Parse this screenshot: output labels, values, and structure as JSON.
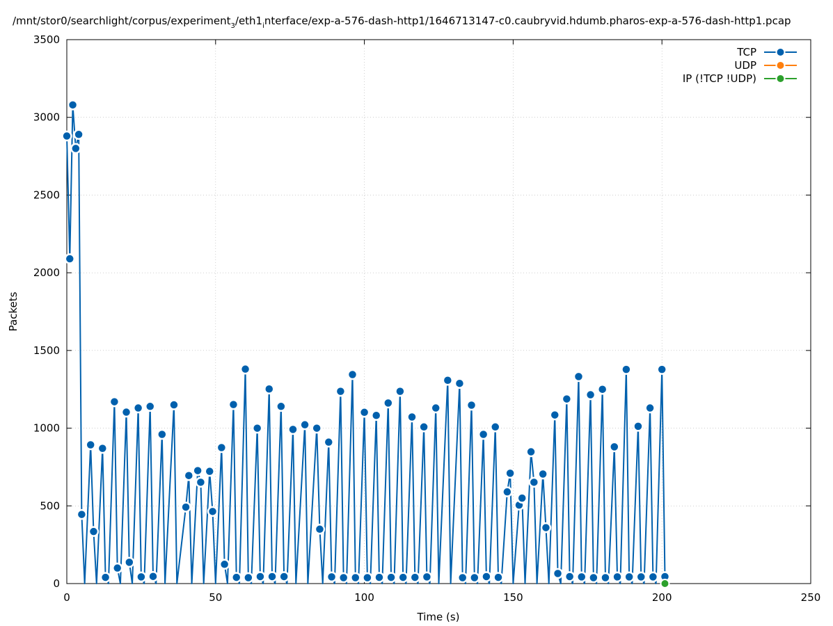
{
  "chart_data": {
    "type": "line",
    "title_prefix": "/mnt/stor0/searchlight/corpus/experiment",
    "title_sub1": "3",
    "title_mid": "/eth1",
    "title_sub2": "i",
    "title_suffix": "nterface/exp-a-576-dash-http1/1646713147-c0.caubryvid.hdumb.pharos-exp-a-576-dash-http1.pcap",
    "xlabel": "Time (s)",
    "ylabel": "Packets",
    "xlim": [
      0,
      250
    ],
    "ylim": [
      0,
      3500
    ],
    "xticks": [
      "0",
      "50",
      "100",
      "150",
      "200",
      "250"
    ],
    "yticks": [
      "0",
      "500",
      "1000",
      "1500",
      "2000",
      "2500",
      "3000",
      "3500"
    ],
    "grid": true,
    "legend_position": "top-right",
    "series": [
      {
        "name": "TCP",
        "color": "#0060ad",
        "points": [
          [
            0,
            2880
          ],
          [
            1,
            2090
          ],
          [
            2,
            3080
          ],
          [
            3,
            2800
          ],
          [
            4,
            2890
          ],
          [
            5,
            445
          ],
          [
            6,
            0
          ],
          [
            8,
            893
          ],
          [
            9,
            335
          ],
          [
            10,
            0
          ],
          [
            12,
            870
          ],
          [
            13,
            40
          ],
          [
            14,
            0
          ],
          [
            16,
            1170
          ],
          [
            17,
            100
          ],
          [
            18,
            0
          ],
          [
            20,
            1103
          ],
          [
            21,
            137
          ],
          [
            22,
            0
          ],
          [
            24,
            1130
          ],
          [
            25,
            43
          ],
          [
            26,
            0
          ],
          [
            28,
            1140
          ],
          [
            29,
            46
          ],
          [
            30,
            0
          ],
          [
            32,
            960
          ],
          [
            33,
            0
          ],
          [
            36,
            1150
          ],
          [
            37,
            0
          ],
          [
            40,
            492
          ],
          [
            41,
            695
          ],
          [
            42,
            0
          ],
          [
            44,
            727
          ],
          [
            45,
            652
          ],
          [
            46,
            0
          ],
          [
            48,
            722
          ],
          [
            49,
            464
          ],
          [
            50,
            0
          ],
          [
            52,
            875
          ],
          [
            53,
            124
          ],
          [
            54,
            0
          ],
          [
            56,
            1152
          ],
          [
            57,
            40
          ],
          [
            58,
            0
          ],
          [
            60,
            1380
          ],
          [
            61,
            38
          ],
          [
            62,
            0
          ],
          [
            64,
            1000
          ],
          [
            65,
            45
          ],
          [
            66,
            0
          ],
          [
            68,
            1252
          ],
          [
            69,
            45
          ],
          [
            70,
            0
          ],
          [
            72,
            1140
          ],
          [
            73,
            45
          ],
          [
            74,
            0
          ],
          [
            76,
            992
          ],
          [
            77,
            0
          ],
          [
            80,
            1022
          ],
          [
            81,
            0
          ],
          [
            84,
            1000
          ],
          [
            85,
            350
          ],
          [
            86,
            0
          ],
          [
            88,
            910
          ],
          [
            89,
            43
          ],
          [
            90,
            0
          ],
          [
            92,
            1237
          ],
          [
            93,
            38
          ],
          [
            94,
            0
          ],
          [
            96,
            1345
          ],
          [
            97,
            38
          ],
          [
            98,
            0
          ],
          [
            100,
            1102
          ],
          [
            101,
            38
          ],
          [
            102,
            0
          ],
          [
            104,
            1082
          ],
          [
            105,
            40
          ],
          [
            106,
            0
          ],
          [
            108,
            1162
          ],
          [
            109,
            40
          ],
          [
            110,
            0
          ],
          [
            112,
            1237
          ],
          [
            113,
            40
          ],
          [
            114,
            0
          ],
          [
            116,
            1072
          ],
          [
            117,
            40
          ],
          [
            118,
            0
          ],
          [
            120,
            1008
          ],
          [
            121,
            43
          ],
          [
            122,
            0
          ],
          [
            124,
            1130
          ],
          [
            125,
            0
          ],
          [
            128,
            1308
          ],
          [
            129,
            0
          ],
          [
            132,
            1288
          ],
          [
            133,
            38
          ],
          [
            134,
            0
          ],
          [
            136,
            1148
          ],
          [
            137,
            38
          ],
          [
            138,
            0
          ],
          [
            140,
            960
          ],
          [
            141,
            45
          ],
          [
            142,
            0
          ],
          [
            144,
            1008
          ],
          [
            145,
            40
          ],
          [
            146,
            0
          ],
          [
            148,
            590
          ],
          [
            149,
            710
          ],
          [
            150,
            0
          ],
          [
            152,
            505
          ],
          [
            153,
            550
          ],
          [
            154,
            0
          ],
          [
            156,
            848
          ],
          [
            157,
            652
          ],
          [
            158,
            0
          ],
          [
            160,
            705
          ],
          [
            161,
            360
          ],
          [
            162,
            0
          ],
          [
            164,
            1085
          ],
          [
            165,
            65
          ],
          [
            166,
            0
          ],
          [
            168,
            1188
          ],
          [
            169,
            45
          ],
          [
            170,
            0
          ],
          [
            172,
            1332
          ],
          [
            173,
            43
          ],
          [
            174,
            0
          ],
          [
            176,
            1215
          ],
          [
            177,
            38
          ],
          [
            178,
            0
          ],
          [
            180,
            1250
          ],
          [
            181,
            38
          ],
          [
            182,
            0
          ],
          [
            184,
            880
          ],
          [
            185,
            43
          ],
          [
            186,
            0
          ],
          [
            188,
            1378
          ],
          [
            189,
            43
          ],
          [
            190,
            0
          ],
          [
            192,
            1012
          ],
          [
            193,
            43
          ],
          [
            194,
            0
          ],
          [
            196,
            1130
          ],
          [
            197,
            43
          ],
          [
            198,
            0
          ],
          [
            200,
            1378
          ],
          [
            201,
            45
          ]
        ]
      },
      {
        "name": "UDP",
        "color": "#ff7f0e",
        "points": []
      },
      {
        "name": "IP (!TCP  !UDP)",
        "color": "#2ca02c",
        "points": [
          [
            201,
            0
          ]
        ]
      }
    ]
  }
}
